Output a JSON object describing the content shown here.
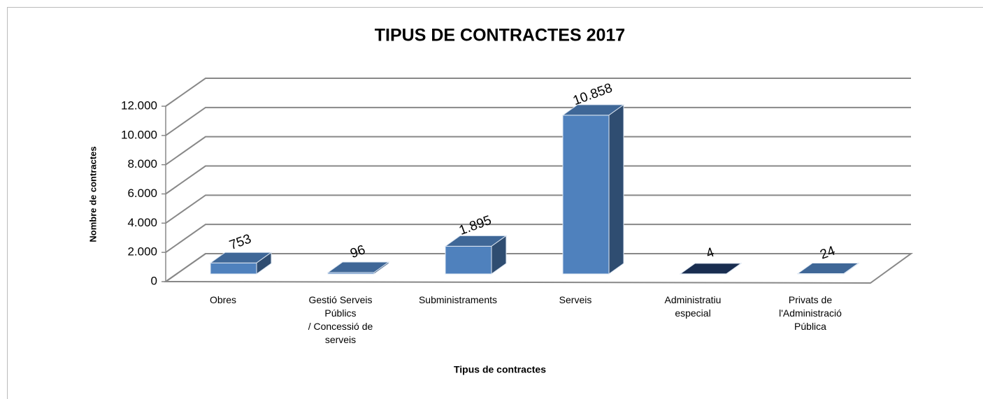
{
  "chart_data": {
    "type": "bar3d",
    "title": "TIPUS DE CONTRACTES 2017",
    "xlabel": "Tipus de contractes",
    "ylabel": "Nombre de contractes",
    "categories": [
      "Obres",
      "Gestió Serveis\nPúblics\n/ Concessió de\nserveis",
      "Subministraments",
      "Serveis",
      "Administratiu\nespecial",
      "Privats de\nl'Administració\nPública"
    ],
    "values": [
      753,
      96,
      1895,
      10858,
      4,
      24
    ],
    "value_labels": [
      "753",
      "96",
      "1.895",
      "10.858",
      "4",
      "24"
    ],
    "colors": [
      "#4f81bd",
      "#4f81bd",
      "#4f81bd",
      "#4f81bd",
      "#1f3864",
      "#4f81bd"
    ],
    "ylim": [
      0,
      12000
    ],
    "yticks": [
      0,
      {
        "value": 2000,
        "label": "2.000"
      },
      {
        "value": 4000,
        "label": "4.000"
      },
      {
        "value": 6000,
        "label": "6.000"
      },
      {
        "value": 8000,
        "label": "8.000"
      },
      {
        "value": 10000,
        "label": "10.000"
      },
      {
        "value": 12000,
        "label": "12.000"
      }
    ],
    "grid": true
  }
}
